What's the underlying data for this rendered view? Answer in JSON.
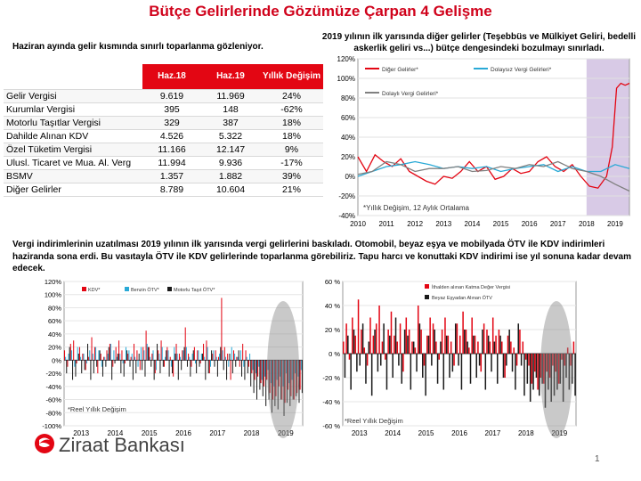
{
  "title": "Bütçe Gelirlerinde Gözümüze Çarpan 4 Gelişme",
  "table_section": {
    "heading": "Haziran ayında gelir kısmında sınırlı toparlanma gözleniyor.",
    "columns": [
      "",
      "Haz.18",
      "Haz.19",
      "Yıllık Değişim"
    ],
    "rows": [
      [
        "Gelir Vergisi",
        "9.619",
        "11.969",
        "24%"
      ],
      [
        "Kurumlar Vergisi",
        "395",
        "148",
        "-62%"
      ],
      [
        "Motorlu Taşıtlar Vergisi",
        "329",
        "387",
        "18%"
      ],
      [
        "Dahilde Alınan KDV",
        "4.526",
        "5.322",
        "18%"
      ],
      [
        "Özel Tüketim Vergisi",
        "11.166",
        "12.147",
        "9%"
      ],
      [
        "Ulusl. Ticaret ve Mua. Al. Verg",
        "11.994",
        "9.936",
        "-17%"
      ],
      [
        "BSMV",
        "1.357",
        "1.882",
        "39%"
      ],
      [
        "Diğer Gelirler",
        "8.789",
        "10.604",
        "21%"
      ]
    ]
  },
  "top_right_heading": "2019 yılının ilk yarısında diğer gelirler (Teşebbüs ve Mülkiyet Geliri, bedelli askerlik geliri vs...) bütçe dengesindeki bozulmayı sınırladı.",
  "paragraph": "Vergi indirimlerinin uzatılması 2019 yılının ilk yarısında vergi gelirlerini baskıladı. Otomobil, beyaz eşya ve mobilyada ÖTV ile KDV indirimleri haziranda sona erdi. Bu vasıtayla ÖTV ile KDV gelirlerinde toparlanma görebiliriz.  Tapu harcı ve konuttaki KDV indirimi ise yıl sonuna kadar devam edecek.",
  "logo": "Ziraat Bankası",
  "page_number": "1",
  "colors": {
    "red": "#e30613",
    "cyan": "#29a9d6",
    "gray": "#808080",
    "black": "#1a1a1a",
    "purple": "#c8b4dc"
  },
  "chart_data": [
    {
      "type": "line",
      "id": "chart1",
      "ylim": [
        -40,
        120
      ],
      "yticks": [
        "120%",
        "100%",
        "80%",
        "60%",
        "40%",
        "20%",
        "0%",
        "-20%",
        "-40%"
      ],
      "xticks": [
        "2010",
        "2011",
        "2012",
        "2013",
        "2014",
        "2015",
        "2016",
        "2017",
        "2018",
        "2019"
      ],
      "x_start": 2010,
      "x_end": 2019.5,
      "annotation": "*Yıllık Değişim, 12 Aylık Ortalama",
      "highlight": [
        2018,
        2019.5
      ],
      "series": [
        {
          "name": "Diğer Gelirler*",
          "color": "#e30613",
          "x": [
            2010,
            2010.3,
            2010.6,
            2010.9,
            2011.2,
            2011.5,
            2011.8,
            2012.1,
            2012.4,
            2012.7,
            2013,
            2013.3,
            2013.6,
            2013.9,
            2014.2,
            2014.5,
            2014.8,
            2015.1,
            2015.4,
            2015.7,
            2016,
            2016.3,
            2016.6,
            2016.9,
            2017.2,
            2017.5,
            2017.8,
            2018.1,
            2018.4,
            2018.7,
            2018.9,
            2019.05,
            2019.2,
            2019.35,
            2019.5
          ],
          "values": [
            20,
            5,
            22,
            15,
            10,
            18,
            5,
            0,
            -5,
            -8,
            0,
            -2,
            5,
            15,
            5,
            10,
            -3,
            0,
            8,
            3,
            5,
            15,
            20,
            10,
            5,
            12,
            0,
            -10,
            -12,
            0,
            30,
            90,
            95,
            93,
            95
          ]
        },
        {
          "name": "Dolaysız Vergi Gelirleri*",
          "color": "#29a9d6",
          "x": [
            2010,
            2010.5,
            2011,
            2011.5,
            2012,
            2012.5,
            2013,
            2013.5,
            2014,
            2014.5,
            2015,
            2015.5,
            2016,
            2016.5,
            2017,
            2017.5,
            2018,
            2018.5,
            2019,
            2019.5
          ],
          "values": [
            0,
            5,
            10,
            12,
            15,
            12,
            8,
            10,
            8,
            10,
            5,
            8,
            10,
            12,
            5,
            10,
            5,
            5,
            12,
            8
          ]
        },
        {
          "name": "Dolaylı Vergi Gelirleri*",
          "color": "#808080",
          "x": [
            2010,
            2010.5,
            2011,
            2011.5,
            2012,
            2012.5,
            2013,
            2013.5,
            2014,
            2014.5,
            2015,
            2015.5,
            2016,
            2016.5,
            2017,
            2017.5,
            2018,
            2018.5,
            2019,
            2019.5
          ],
          "values": [
            2,
            5,
            15,
            12,
            5,
            8,
            8,
            10,
            5,
            6,
            10,
            8,
            12,
            10,
            15,
            8,
            5,
            0,
            -8,
            -15
          ]
        }
      ]
    },
    {
      "type": "bar",
      "id": "chart2",
      "ylim": [
        -100,
        120
      ],
      "yticks": [
        "120%",
        "100%",
        "80%",
        "60%",
        "40%",
        "20%",
        "0%",
        "-20%",
        "-40%",
        "-60%",
        "-80%",
        "-100%"
      ],
      "xticks": [
        "2013",
        "2014",
        "2015",
        "2016",
        "2017",
        "2018",
        "2019"
      ],
      "annotation": "*Reel Yıllık Değişim",
      "series": [
        {
          "name": "KDV*",
          "color": "#e30613",
          "values": [
            15,
            -10,
            25,
            30,
            -5,
            20,
            10,
            -15,
            5,
            35,
            20,
            -20,
            10,
            5,
            15,
            25,
            -10,
            20,
            30,
            15,
            -5,
            10,
            5,
            25,
            15,
            -15,
            20,
            45,
            20,
            10,
            -20,
            15,
            30,
            -10,
            20,
            5,
            -25,
            25,
            10,
            15,
            50,
            10,
            -10,
            20,
            15,
            -5,
            25,
            30,
            -20,
            10,
            15,
            5,
            95,
            20,
            10,
            -30,
            15,
            5,
            -10,
            25,
            15,
            -10,
            -20,
            -30,
            -25,
            -35,
            -40,
            -30,
            -50,
            -60,
            -55,
            -40,
            -60,
            -65,
            -45,
            -55,
            -60,
            -50,
            -45
          ]
        },
        {
          "name": "Benzin ÖTV*",
          "color": "#29a9d6",
          "values": [
            5,
            10,
            15,
            -10,
            20,
            5,
            10,
            -5,
            15,
            10,
            20,
            15,
            -10,
            5,
            10,
            25,
            15,
            5,
            10,
            -5,
            20,
            15,
            10,
            5,
            -10,
            20,
            15,
            25,
            5,
            15,
            -15,
            10,
            20,
            5,
            15,
            -10,
            20,
            10,
            5,
            15,
            20,
            5,
            10,
            -5,
            15,
            10,
            5,
            20,
            -10,
            15,
            5,
            10,
            15,
            5,
            -10,
            20,
            10,
            5,
            15,
            -10,
            5,
            10,
            -15,
            -20,
            -10,
            -30,
            -25,
            -15,
            -35,
            -40,
            -30,
            -25,
            -40,
            -20,
            -35,
            -30,
            -20,
            -25,
            -15
          ]
        },
        {
          "name": "Motorlu Taşıt ÖTV*",
          "color": "#1a1a1a",
          "values": [
            -20,
            20,
            -30,
            -25,
            10,
            -20,
            -15,
            25,
            -30,
            -20,
            -10,
            15,
            -25,
            -10,
            20,
            -30,
            -5,
            10,
            -20,
            -25,
            15,
            -10,
            -30,
            -20,
            10,
            -15,
            -25,
            20,
            -10,
            -30,
            25,
            -20,
            -10,
            15,
            -25,
            -20,
            10,
            -30,
            -15,
            20,
            -10,
            -25,
            15,
            -20,
            -10,
            10,
            -30,
            -20,
            15,
            -10,
            -25,
            20,
            -15,
            -30,
            10,
            -20,
            -10,
            15,
            -25,
            -30,
            -20,
            -40,
            -50,
            -60,
            -45,
            -55,
            -70,
            -60,
            -80,
            -70,
            -75,
            -60,
            -85,
            -65,
            -70,
            -60,
            -55,
            -65,
            -50
          ]
        }
      ]
    },
    {
      "type": "bar",
      "id": "chart3",
      "ylim": [
        -60,
        60
      ],
      "yticks": [
        "60 %",
        "40 %",
        "20 %",
        "0 %",
        "-20 %",
        "-40 %",
        "-60 %"
      ],
      "xticks": [
        "2013",
        "2014",
        "2015",
        "2016",
        "2017",
        "2018",
        "2019"
      ],
      "annotation": "*Reel Yıllık Değişim",
      "series": [
        {
          "name": "İthalden alınan Katma Değer Vergisi",
          "color": "#e30613",
          "values": [
            10,
            25,
            -5,
            30,
            15,
            45,
            20,
            5,
            -10,
            30,
            15,
            25,
            40,
            10,
            -5,
            20,
            35,
            15,
            10,
            25,
            -15,
            30,
            20,
            10,
            5,
            40,
            20,
            -10,
            15,
            30,
            25,
            10,
            -5,
            20,
            30,
            15,
            10,
            -10,
            25,
            15,
            35,
            20,
            5,
            30,
            15,
            10,
            -15,
            25,
            20,
            10,
            30,
            15,
            20,
            10,
            -20,
            15,
            10,
            5,
            -10,
            20,
            10,
            -5,
            -10,
            -25,
            -15,
            -30,
            -20,
            -25,
            -15,
            -20,
            -10,
            -15,
            -25,
            -5,
            -10,
            5,
            -10,
            10
          ]
        },
        {
          "name": "Beyaz Eşyadan Alınan ÖTV",
          "color": "#1a1a1a",
          "values": [
            -20,
            15,
            -30,
            20,
            -15,
            -10,
            25,
            -25,
            10,
            -35,
            20,
            -15,
            -10,
            25,
            -30,
            15,
            -20,
            30,
            -10,
            -25,
            20,
            15,
            -30,
            10,
            -15,
            25,
            -20,
            -35,
            15,
            -10,
            20,
            -25,
            10,
            -30,
            15,
            -20,
            -15,
            25,
            -10,
            -30,
            20,
            10,
            -25,
            15,
            -20,
            -10,
            20,
            -30,
            15,
            -15,
            10,
            -25,
            15,
            -20,
            -10,
            20,
            -15,
            -30,
            25,
            -10,
            -35,
            -25,
            -40,
            -30,
            -20,
            -35,
            -25,
            -45,
            -30,
            -40,
            -35,
            -30,
            -25,
            -40,
            -20,
            -30,
            -25,
            -35
          ]
        }
      ]
    }
  ]
}
